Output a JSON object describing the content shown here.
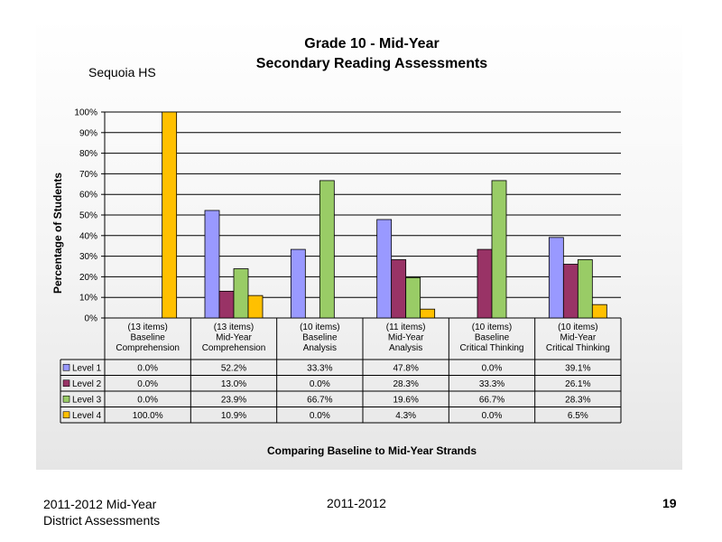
{
  "chart_data": {
    "type": "bar",
    "title": [
      "Grade 10 - Mid-Year",
      "Secondary Reading Assessments"
    ],
    "subtitle": "Sequoia HS",
    "ylabel": "Percentage of Students",
    "xlabel": "Comparing Baseline to Mid-Year Strands",
    "ylim": [
      0,
      100
    ],
    "ytick_labels": [
      "0%",
      "10%",
      "20%",
      "30%",
      "40%",
      "50%",
      "60%",
      "70%",
      "80%",
      "90%",
      "100%"
    ],
    "grid": true,
    "categories": [
      [
        "(13 items)",
        "Baseline",
        "Comprehension"
      ],
      [
        "(13 items)",
        "Mid-Year",
        "Comprehension"
      ],
      [
        "(10 items)",
        "Baseline",
        "Analysis"
      ],
      [
        "(11 items)",
        "Mid-Year",
        "Analysis"
      ],
      [
        "(10 items)",
        "Baseline",
        "Critical Thinking"
      ],
      [
        "(10 items)",
        "Mid-Year",
        "Critical Thinking"
      ]
    ],
    "series": [
      {
        "name": "Level 1",
        "color": "#9999ff",
        "values": [
          0.0,
          52.2,
          33.3,
          47.8,
          0.0,
          39.1
        ],
        "labels": [
          "0.0%",
          "52.2%",
          "33.3%",
          "47.8%",
          "0.0%",
          "39.1%"
        ]
      },
      {
        "name": "Level 2",
        "color": "#993366",
        "values": [
          0.0,
          13.0,
          0.0,
          28.3,
          33.3,
          26.1
        ],
        "labels": [
          "0.0%",
          "13.0%",
          "0.0%",
          "28.3%",
          "33.3%",
          "26.1%"
        ]
      },
      {
        "name": "Level 3",
        "color": "#99cc66",
        "values": [
          0.0,
          23.9,
          66.7,
          19.6,
          66.7,
          28.3
        ],
        "labels": [
          "0.0%",
          "23.9%",
          "66.7%",
          "19.6%",
          "66.7%",
          "28.3%"
        ]
      },
      {
        "name": "Level 4",
        "color": "#ffc000",
        "values": [
          100.0,
          10.9,
          0.0,
          4.3,
          0.0,
          6.5
        ],
        "labels": [
          "100.0%",
          "10.9%",
          "0.0%",
          "4.3%",
          "0.0%",
          "6.5%"
        ]
      }
    ],
    "legend": "data-table"
  },
  "footer": {
    "left_line1": "2011-2012  Mid-Year",
    "left_line2": "District Assessments",
    "center": "2011-2012",
    "page_number": "19"
  }
}
